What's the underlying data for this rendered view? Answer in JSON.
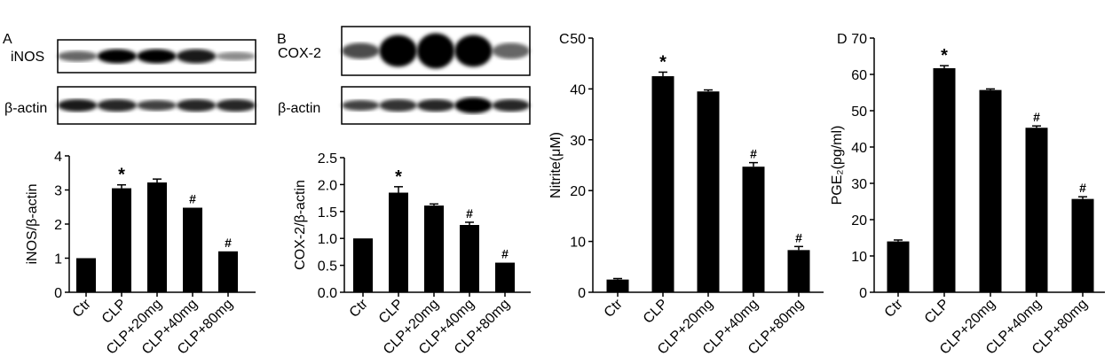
{
  "panels": {
    "A": {
      "label": "A",
      "blots": [
        "iNOS",
        "β-actin"
      ]
    },
    "B": {
      "label": "B",
      "blots": [
        "COX-2",
        "β-actin"
      ]
    },
    "C": {
      "label": "C"
    },
    "D": {
      "label": "D"
    }
  },
  "chart_data": [
    {
      "type": "bar",
      "panel": "A",
      "categories": [
        "Ctr",
        "CLP",
        "CLP+20mg",
        "CLP+40mg",
        "CLP+80mg"
      ],
      "values": [
        1.0,
        3.05,
        3.22,
        2.48,
        1.2
      ],
      "errors": [
        0,
        0.1,
        0.1,
        0,
        0
      ],
      "annotations": [
        "",
        "*",
        "",
        "#",
        "#"
      ],
      "ylabel": "iNOS/β-actin",
      "ylim": [
        0,
        4
      ],
      "yticks": [
        "0",
        "1",
        "2",
        "3",
        "4"
      ],
      "color": "#000000"
    },
    {
      "type": "bar",
      "panel": "B",
      "categories": [
        "Ctr",
        "CLP",
        "CLP+20mg",
        "CLP+40mg",
        "CLP+80mg"
      ],
      "values": [
        1.0,
        1.85,
        1.61,
        1.25,
        0.55
      ],
      "errors": [
        0,
        0.11,
        0.03,
        0.05,
        0
      ],
      "annotations": [
        "",
        "*",
        "",
        "#",
        "#"
      ],
      "ylabel": "COX-2/β-actin",
      "ylim": [
        0,
        2.5
      ],
      "yticks": [
        "0.0",
        "0.5",
        "1.0",
        "1.5",
        "2.0",
        "2.5"
      ],
      "color": "#000000"
    },
    {
      "type": "bar",
      "panel": "C",
      "categories": [
        "Ctr",
        "CLP",
        "CLP+20mg",
        "CLP+40mg",
        "CLP+80mg"
      ],
      "values": [
        2.5,
        42.5,
        39.5,
        24.7,
        8.3
      ],
      "errors": [
        0.2,
        0.8,
        0.3,
        0.8,
        0.7
      ],
      "annotations": [
        "",
        "*",
        "",
        "#",
        "#"
      ],
      "ylabel": "Nitrite(μM)",
      "ylim": [
        0,
        50
      ],
      "yticks": [
        "0",
        "10",
        "20",
        "30",
        "40",
        "50"
      ],
      "color": "#000000"
    },
    {
      "type": "bar",
      "panel": "D",
      "categories": [
        "Ctr",
        "CLP",
        "CLP+20mg",
        "CLP+40mg",
        "CLP+80mg"
      ],
      "values": [
        14,
        61.7,
        55.7,
        45.3,
        25.7
      ],
      "errors": [
        0.4,
        0.7,
        0.3,
        0.5,
        0.6
      ],
      "annotations": [
        "",
        "*",
        "",
        "#",
        "#"
      ],
      "ylabel": "PGE₂(pg/ml)",
      "ylim": [
        0,
        70
      ],
      "yticks": [
        "0",
        "10",
        "20",
        "30",
        "40",
        "50",
        "60",
        "70"
      ],
      "color": "#000000"
    }
  ]
}
